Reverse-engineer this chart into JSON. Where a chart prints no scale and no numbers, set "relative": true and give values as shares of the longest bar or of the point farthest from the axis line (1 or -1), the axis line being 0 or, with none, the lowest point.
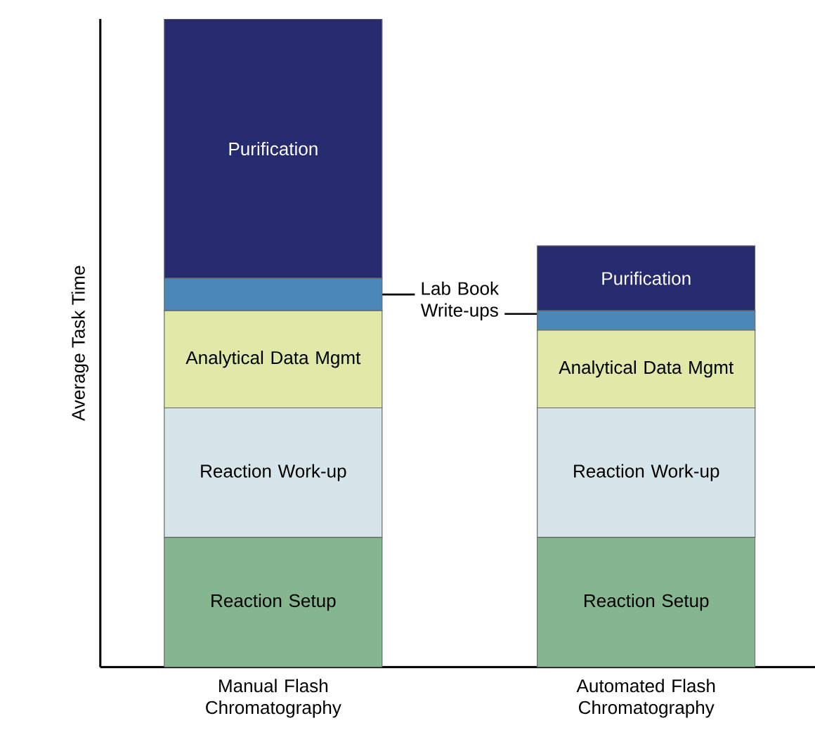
{
  "chart_data": {
    "type": "bar",
    "stacked": true,
    "relative": true,
    "ylabel": "Average Task Time",
    "categories": [
      "Manual Flash Chromatography",
      "Automated Flash Chromatography"
    ],
    "series": [
      {
        "name": "Reaction Setup",
        "color": "#86b68f",
        "values": [
          0.2,
          0.2
        ]
      },
      {
        "name": "Reaction Work-up",
        "color": "#d6e5ea",
        "values": [
          0.2,
          0.2
        ]
      },
      {
        "name": "Analytical Data Mgmt",
        "color": "#e0e9a8",
        "values": [
          0.15,
          0.12
        ]
      },
      {
        "name": "Lab Book Write-ups",
        "color": "#4a88b8",
        "values": [
          0.05,
          0.03
        ]
      },
      {
        "name": "Purification",
        "color": "#262a6e",
        "values": [
          0.4,
          0.1
        ]
      }
    ]
  }
}
